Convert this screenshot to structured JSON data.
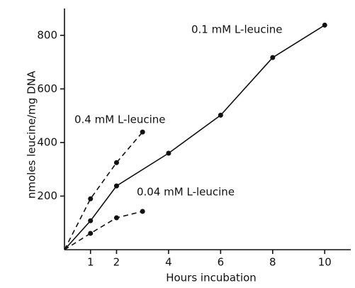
{
  "chart_data": {
    "type": "line",
    "xlabel": "Hours incubation",
    "ylabel": "nmoles leucine/mg DNA",
    "xlim": [
      0,
      11
    ],
    "ylim": [
      0,
      900
    ],
    "xticks": [
      1,
      2,
      4,
      6,
      8,
      10
    ],
    "yticks": [
      200,
      400,
      600,
      800
    ],
    "series": [
      {
        "name": "0.1 mM L-leucine",
        "color": "#111111",
        "dashed": false,
        "x": [
          0,
          1,
          2,
          4,
          6,
          8,
          10
        ],
        "values": [
          0,
          108,
          238,
          360,
          502,
          717,
          838
        ]
      },
      {
        "name": "0.4 mM L-leucine",
        "color": "#111111",
        "dashed": true,
        "x": [
          0,
          1,
          2,
          3
        ],
        "values": [
          0,
          190,
          325,
          439
        ]
      },
      {
        "name": "0.04 mM L-leucine",
        "color": "#111111",
        "dashed": true,
        "x": [
          0,
          1,
          2,
          3
        ],
        "values": [
          0,
          61,
          119,
          143
        ]
      }
    ]
  }
}
